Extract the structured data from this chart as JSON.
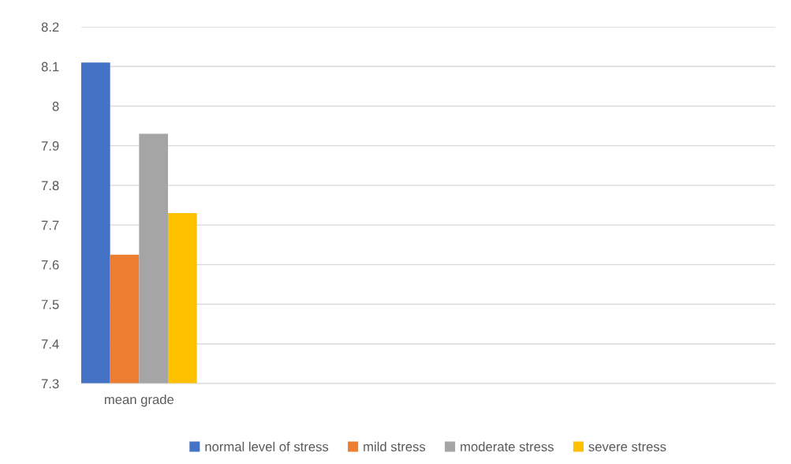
{
  "chart_data": {
    "type": "bar",
    "categories": [
      "mean grade",
      null,
      null,
      null,
      null,
      null
    ],
    "series": [
      {
        "name": "normal level of stress",
        "color": "#4472c4",
        "values": [
          8.11,
          null,
          null,
          null,
          null,
          null
        ]
      },
      {
        "name": "mild stress",
        "color": "#ed7d31",
        "values": [
          7.625,
          null,
          null,
          null,
          null,
          null
        ]
      },
      {
        "name": "moderate stress",
        "color": "#a5a5a5",
        "values": [
          7.93,
          null,
          null,
          null,
          null,
          null
        ]
      },
      {
        "name": "severe stress",
        "color": "#ffc000",
        "values": [
          7.73,
          null,
          null,
          null,
          null,
          null
        ]
      }
    ],
    "ylim": [
      7.3,
      8.2
    ],
    "yticks": [
      7.3,
      7.4,
      7.5,
      7.6,
      7.7,
      7.8,
      7.9,
      {
        "value": 8.0,
        "label": "8"
      },
      8.1,
      8.2
    ],
    "grid": "y",
    "legend": "bottom"
  }
}
